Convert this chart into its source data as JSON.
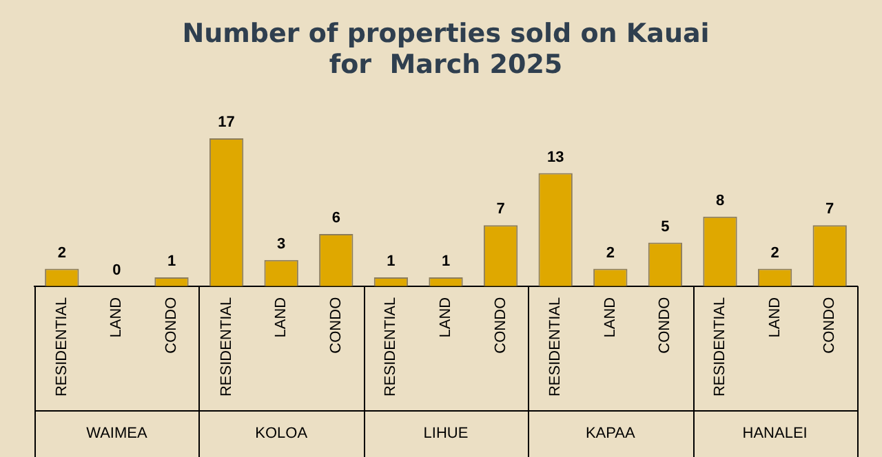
{
  "chart_data": {
    "type": "bar",
    "title": "Number of properties sold on Kauai\nfor  March 2025",
    "categories": [
      "RESIDENTIAL",
      "LAND",
      "CONDO",
      "RESIDENTIAL",
      "LAND",
      "CONDO",
      "RESIDENTIAL",
      "LAND",
      "CONDO",
      "RESIDENTIAL",
      "LAND",
      "CONDO",
      "RESIDENTIAL",
      "LAND",
      "CONDO"
    ],
    "values": [
      2,
      0,
      1,
      17,
      3,
      6,
      1,
      1,
      7,
      13,
      2,
      5,
      8,
      2,
      7
    ],
    "color": "#dfa800",
    "annotations": [
      "WAIMEA",
      "KOLOA",
      "LIHUE",
      "KAPAA",
      "HANALEI"
    ],
    "data_labels": true,
    "grid": false,
    "legend": false
  }
}
